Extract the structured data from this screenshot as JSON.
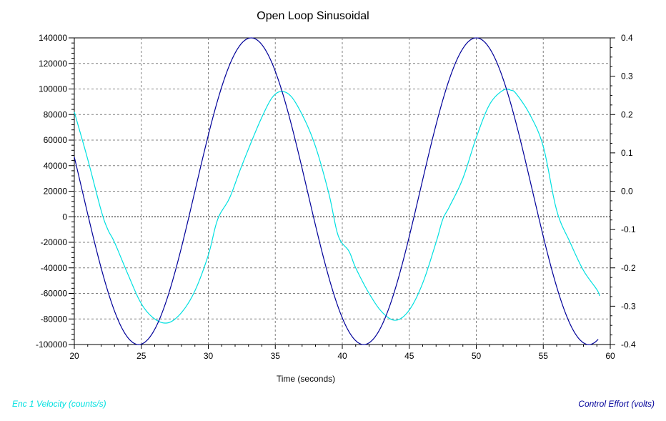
{
  "chart_data": {
    "type": "line",
    "title": "Open Loop Sinusoidal",
    "xlabel": "Time (seconds)",
    "xlim": [
      20,
      60
    ],
    "x_ticks": [
      20,
      25,
      30,
      35,
      40,
      45,
      50,
      55,
      60
    ],
    "y_left": {
      "label": "Enc 1 Velocity (counts/s)",
      "lim": [
        -100000,
        140000
      ],
      "ticks": [
        140000,
        120000,
        100000,
        80000,
        60000,
        40000,
        20000,
        0,
        -20000,
        -40000,
        -60000,
        -80000,
        -100000
      ]
    },
    "y_right": {
      "label": "Control Effort (volts)",
      "lim": [
        -0.4,
        0.4
      ],
      "ticks": [
        0.4,
        0.3,
        0.2,
        0.1,
        0.0,
        -0.1,
        -0.2,
        -0.3,
        -0.4
      ]
    },
    "grid": true,
    "series": [
      {
        "name": "Enc 1 Velocity (counts/s)",
        "axis": "left",
        "color": "#00e0e0",
        "x": [
          20,
          21,
          22,
          22.5,
          23,
          24,
          25,
          26,
          27,
          28,
          29,
          30,
          30.7,
          31.6,
          32.5,
          34,
          35,
          36,
          37,
          38,
          39,
          39.7,
          40.5,
          41,
          42,
          43,
          44,
          45,
          46,
          47,
          47.5,
          48,
          49,
          50,
          51,
          52,
          52.6,
          53,
          54,
          55,
          56,
          57,
          58,
          59,
          59.2
        ],
        "y": [
          82000,
          45000,
          5000,
          -10000,
          -20000,
          -45000,
          -68000,
          -80000,
          -83000,
          -75000,
          -58000,
          -30000,
          -2000,
          15000,
          40000,
          78000,
          96000,
          96000,
          80000,
          55000,
          18000,
          -15000,
          -27000,
          -40000,
          -60000,
          -75000,
          -81000,
          -73000,
          -52000,
          -20000,
          -2000,
          8000,
          30000,
          62000,
          88000,
          99000,
          99000,
          96000,
          80000,
          55000,
          5000,
          -20000,
          -42000,
          -57000,
          -62000
        ]
      },
      {
        "name": "Control Effort (volts)",
        "axis": "right",
        "color": "#000099",
        "amplitude": 0.4,
        "period": 16.8,
        "peak_time": 33.2
      }
    ],
    "legend": {
      "left": "Enc 1 Velocity (counts/s)",
      "right": "Control Effort (volts)",
      "placement": "bottom"
    },
    "colors": {
      "grid": "#808080",
      "zero_line": "#000000",
      "axis": "#000000"
    }
  }
}
